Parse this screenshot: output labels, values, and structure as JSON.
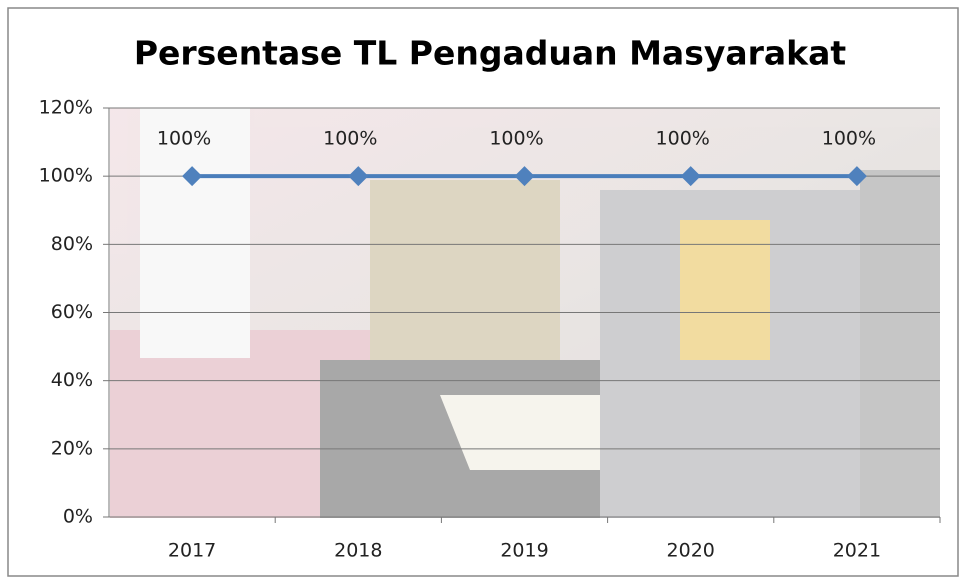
{
  "chart_data": {
    "type": "line",
    "title": "Persentase TL Pengaduan Masyarakat",
    "categories": [
      "2017",
      "2018",
      "2019",
      "2020",
      "2021"
    ],
    "series": [
      {
        "color": "#4a7ebb",
        "values": [
          100,
          100,
          100,
          100,
          100
        ],
        "value_labels": [
          "100%",
          "100%",
          "100%",
          "100%",
          "100%"
        ]
      }
    ],
    "ylim": [
      0,
      120
    ],
    "yticks": [
      {
        "value": 0,
        "label": "0%"
      },
      {
        "value": 20,
        "label": "20%"
      },
      {
        "value": 40,
        "label": "40%"
      },
      {
        "value": 60,
        "label": "60%"
      },
      {
        "value": 80,
        "label": "80%"
      },
      {
        "value": 100,
        "label": "100%"
      },
      {
        "value": 120,
        "label": "120%"
      }
    ],
    "grid": true
  }
}
